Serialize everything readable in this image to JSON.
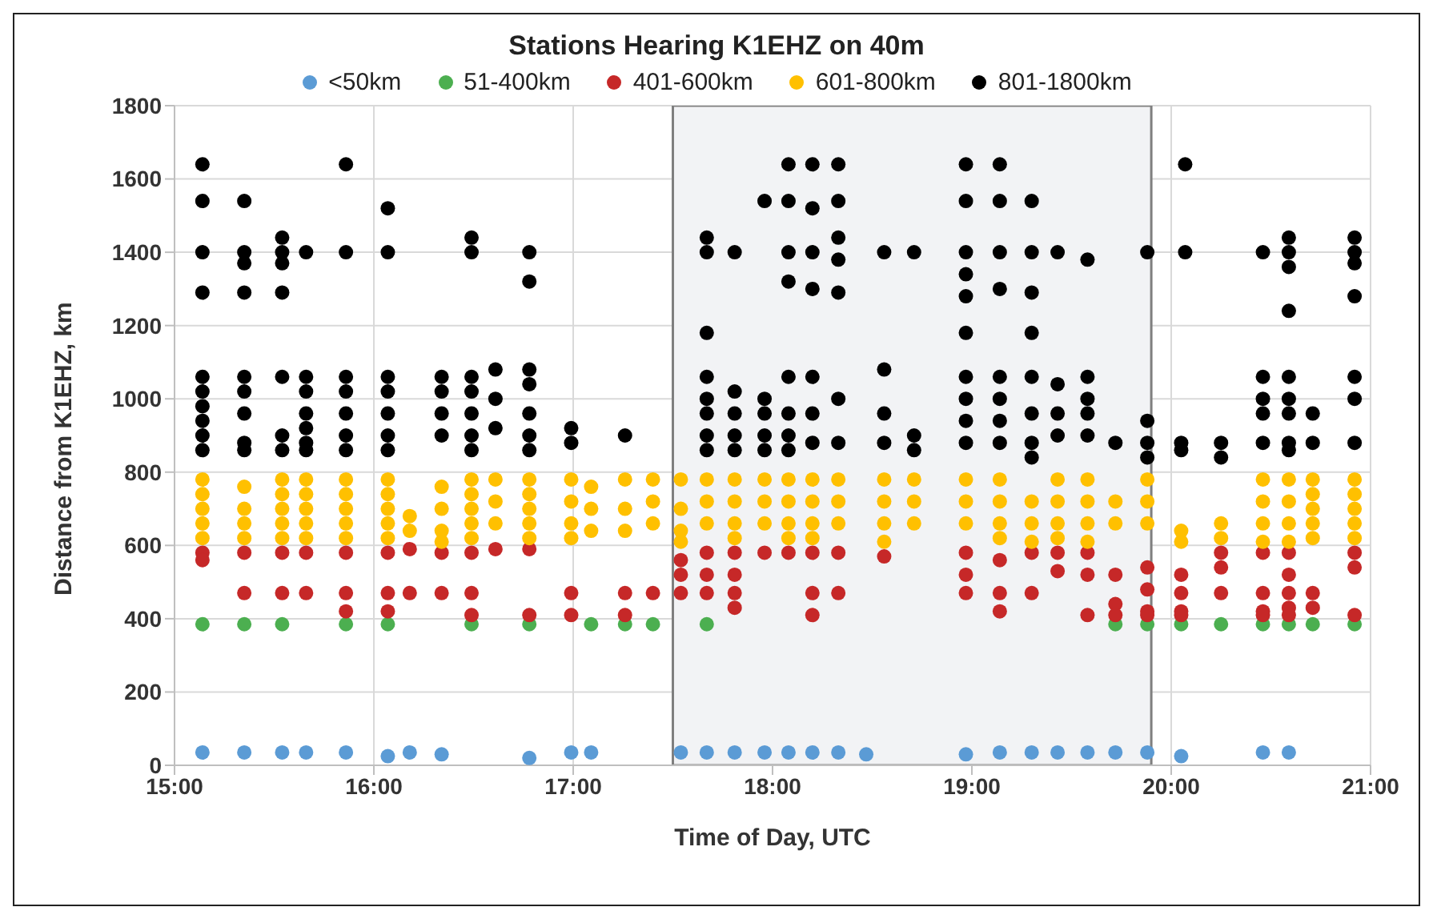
{
  "chart_data": {
    "type": "scatter",
    "title": "Stations Hearing K1EHZ on 40m",
    "xlabel": "Time of Day, UTC",
    "ylabel": "Distance from K1EHZ, km",
    "xlim": [
      15,
      21
    ],
    "ylim": [
      0,
      1800
    ],
    "xticks": [
      {
        "value": 15,
        "label": "15:00"
      },
      {
        "value": 16,
        "label": "16:00"
      },
      {
        "value": 17,
        "label": "17:00"
      },
      {
        "value": 18,
        "label": "18:00"
      },
      {
        "value": 19,
        "label": "19:00"
      },
      {
        "value": 20,
        "label": "20:00"
      },
      {
        "value": 21,
        "label": "21:00"
      }
    ],
    "yticks": [
      0,
      200,
      400,
      600,
      800,
      1000,
      1200,
      1400,
      1600,
      1800
    ],
    "grid": true,
    "legend": "top",
    "marker": "circle",
    "bands": [
      {
        "axis": "x",
        "from": 17.5,
        "to": 19.9,
        "color": "#f2f3f5"
      }
    ],
    "series": [
      {
        "name": "<50km",
        "color": "#5b9bd5",
        "x": [
          15.14,
          15.35,
          15.54,
          15.66,
          15.86,
          16.07,
          16.18,
          16.34,
          16.78,
          16.99,
          17.09,
          17.54,
          17.67,
          17.81,
          17.96,
          18.08,
          18.2,
          18.33,
          18.47,
          18.97,
          19.14,
          19.3,
          19.43,
          19.58,
          19.72,
          19.88,
          20.05,
          20.46,
          20.59
        ],
        "values": [
          35,
          35,
          35,
          35,
          35,
          25,
          35,
          30,
          20,
          35,
          35,
          35,
          35,
          35,
          35,
          35,
          35,
          35,
          30,
          30,
          35,
          35,
          35,
          35,
          35,
          35,
          25,
          35,
          35
        ]
      },
      {
        "name": "51-400km",
        "color": "#4caf50",
        "x": [
          15.14,
          15.35,
          15.54,
          15.86,
          16.07,
          16.49,
          16.78,
          17.09,
          17.26,
          17.4,
          17.67,
          19.72,
          19.88,
          20.05,
          20.25,
          20.46,
          20.59,
          20.71,
          20.92
        ],
        "values": [
          385,
          385,
          385,
          385,
          385,
          385,
          385,
          385,
          385,
          385,
          385,
          385,
          385,
          385,
          385,
          385,
          385,
          385,
          385
        ]
      },
      {
        "name": "401-600km",
        "color": "#c62828",
        "x": [
          15.14,
          15.14,
          15.35,
          15.35,
          15.54,
          15.54,
          15.66,
          15.66,
          15.86,
          15.86,
          15.86,
          16.07,
          16.07,
          16.07,
          16.18,
          16.18,
          16.34,
          16.34,
          16.49,
          16.49,
          16.49,
          16.61,
          16.78,
          16.78,
          16.99,
          16.99,
          17.26,
          17.26,
          17.4,
          17.54,
          17.54,
          17.54,
          17.67,
          17.67,
          17.67,
          17.81,
          17.81,
          17.81,
          17.81,
          17.96,
          18.08,
          18.2,
          18.2,
          18.2,
          18.33,
          18.33,
          18.56,
          18.97,
          18.97,
          18.97,
          19.14,
          19.14,
          19.14,
          19.3,
          19.3,
          19.43,
          19.43,
          19.58,
          19.58,
          19.58,
          19.72,
          19.72,
          19.72,
          19.88,
          19.88,
          19.88,
          19.88,
          20.05,
          20.05,
          20.05,
          20.05,
          20.25,
          20.25,
          20.25,
          20.46,
          20.46,
          20.46,
          20.46,
          20.59,
          20.59,
          20.59,
          20.59,
          20.59,
          20.71,
          20.71,
          20.92,
          20.92,
          20.92
        ],
        "values": [
          580,
          560,
          580,
          470,
          580,
          470,
          580,
          470,
          580,
          470,
          420,
          580,
          470,
          420,
          590,
          470,
          580,
          470,
          580,
          470,
          410,
          590,
          590,
          410,
          470,
          410,
          470,
          410,
          470,
          560,
          520,
          470,
          580,
          520,
          470,
          580,
          520,
          470,
          430,
          580,
          580,
          580,
          470,
          410,
          580,
          470,
          570,
          580,
          520,
          470,
          560,
          470,
          420,
          580,
          470,
          580,
          530,
          580,
          520,
          410,
          520,
          440,
          410,
          540,
          480,
          420,
          410,
          520,
          470,
          420,
          410,
          580,
          540,
          470,
          580,
          470,
          420,
          410,
          580,
          520,
          470,
          430,
          410,
          470,
          430,
          580,
          540,
          410
        ]
      },
      {
        "name": "601-800km",
        "color": "#ffc000",
        "x": [
          15.14,
          15.14,
          15.14,
          15.14,
          15.14,
          15.35,
          15.35,
          15.35,
          15.35,
          15.54,
          15.54,
          15.54,
          15.54,
          15.54,
          15.66,
          15.66,
          15.66,
          15.66,
          15.66,
          15.86,
          15.86,
          15.86,
          15.86,
          15.86,
          16.07,
          16.07,
          16.07,
          16.07,
          16.07,
          16.18,
          16.18,
          16.34,
          16.34,
          16.34,
          16.34,
          16.49,
          16.49,
          16.49,
          16.49,
          16.49,
          16.61,
          16.61,
          16.61,
          16.78,
          16.78,
          16.78,
          16.78,
          16.78,
          16.99,
          16.99,
          16.99,
          16.99,
          17.09,
          17.09,
          17.09,
          17.26,
          17.26,
          17.26,
          17.4,
          17.4,
          17.4,
          17.54,
          17.54,
          17.54,
          17.54,
          17.67,
          17.67,
          17.67,
          17.81,
          17.81,
          17.81,
          17.81,
          17.96,
          17.96,
          17.96,
          18.08,
          18.08,
          18.08,
          18.08,
          18.2,
          18.2,
          18.2,
          18.2,
          18.33,
          18.33,
          18.33,
          18.56,
          18.56,
          18.56,
          18.56,
          18.71,
          18.71,
          18.71,
          18.97,
          18.97,
          18.97,
          19.14,
          19.14,
          19.14,
          19.14,
          19.3,
          19.3,
          19.3,
          19.43,
          19.43,
          19.43,
          19.43,
          19.58,
          19.58,
          19.58,
          19.58,
          19.72,
          19.72,
          19.88,
          19.88,
          19.88,
          20.05,
          20.05,
          20.25,
          20.25,
          20.46,
          20.46,
          20.46,
          20.46,
          20.59,
          20.59,
          20.59,
          20.59,
          20.71,
          20.71,
          20.71,
          20.71,
          20.71,
          20.92,
          20.92,
          20.92,
          20.92,
          20.92
        ],
        "values": [
          780,
          740,
          700,
          660,
          620,
          760,
          700,
          660,
          620,
          780,
          740,
          700,
          660,
          620,
          780,
          740,
          700,
          660,
          620,
          780,
          740,
          700,
          660,
          620,
          780,
          740,
          700,
          660,
          620,
          680,
          640,
          760,
          700,
          640,
          610,
          780,
          740,
          700,
          660,
          620,
          780,
          720,
          660,
          780,
          740,
          700,
          660,
          620,
          780,
          720,
          660,
          620,
          760,
          700,
          640,
          780,
          700,
          640,
          780,
          720,
          660,
          780,
          700,
          640,
          610,
          780,
          720,
          660,
          780,
          720,
          660,
          620,
          780,
          720,
          660,
          780,
          720,
          660,
          620,
          780,
          720,
          660,
          620,
          780,
          720,
          660,
          780,
          720,
          660,
          610,
          780,
          720,
          660,
          780,
          720,
          660,
          780,
          720,
          660,
          620,
          720,
          660,
          610,
          780,
          720,
          660,
          620,
          780,
          720,
          660,
          610,
          720,
          660,
          780,
          720,
          660,
          640,
          610,
          660,
          620,
          780,
          720,
          660,
          610,
          780,
          720,
          660,
          610,
          780,
          740,
          700,
          660,
          620,
          780,
          740,
          700,
          660,
          620
        ]
      },
      {
        "name": "801-1800km",
        "color": "#000000",
        "x": [
          15.14,
          15.14,
          15.14,
          15.14,
          15.14,
          15.14,
          15.14,
          15.14,
          15.14,
          15.14,
          15.35,
          15.35,
          15.35,
          15.35,
          15.35,
          15.35,
          15.35,
          15.35,
          15.35,
          15.54,
          15.54,
          15.54,
          15.54,
          15.54,
          15.54,
          15.54,
          15.66,
          15.66,
          15.66,
          15.66,
          15.66,
          15.66,
          15.66,
          15.86,
          15.86,
          15.86,
          15.86,
          15.86,
          15.86,
          15.86,
          16.07,
          16.07,
          16.07,
          16.07,
          16.07,
          16.07,
          16.07,
          16.34,
          16.34,
          16.34,
          16.34,
          16.49,
          16.49,
          16.49,
          16.49,
          16.49,
          16.49,
          16.49,
          16.61,
          16.61,
          16.61,
          16.78,
          16.78,
          16.78,
          16.78,
          16.78,
          16.78,
          16.78,
          16.99,
          16.99,
          17.26,
          17.67,
          17.67,
          17.67,
          17.67,
          17.67,
          17.67,
          17.67,
          17.67,
          17.81,
          17.81,
          17.81,
          17.81,
          17.81,
          17.96,
          17.96,
          17.96,
          17.96,
          17.96,
          18.08,
          18.08,
          18.08,
          18.08,
          18.08,
          18.08,
          18.08,
          18.08,
          18.2,
          18.2,
          18.2,
          18.2,
          18.2,
          18.2,
          18.2,
          18.33,
          18.33,
          18.33,
          18.33,
          18.33,
          18.33,
          18.33,
          18.56,
          18.56,
          18.56,
          18.56,
          18.71,
          18.71,
          18.71,
          18.97,
          18.97,
          18.97,
          18.97,
          18.97,
          18.97,
          18.97,
          18.97,
          18.97,
          18.97,
          19.14,
          19.14,
          19.14,
          19.14,
          19.14,
          19.14,
          19.14,
          19.14,
          19.3,
          19.3,
          19.3,
          19.3,
          19.3,
          19.3,
          19.3,
          19.3,
          19.43,
          19.43,
          19.43,
          19.43,
          19.58,
          19.58,
          19.58,
          19.58,
          19.58,
          19.72,
          19.88,
          19.88,
          19.88,
          19.88,
          20.07,
          20.07,
          20.05,
          20.05,
          20.25,
          20.25,
          20.46,
          20.46,
          20.46,
          20.46,
          20.46,
          20.59,
          20.59,
          20.59,
          20.59,
          20.59,
          20.59,
          20.59,
          20.59,
          20.59,
          20.71,
          20.71,
          20.92,
          20.92,
          20.92,
          20.92,
          20.92,
          20.92,
          20.92
        ],
        "values": [
          1640,
          1540,
          1400,
          1290,
          1060,
          1020,
          980,
          940,
          900,
          860,
          1540,
          1400,
          1370,
          1290,
          1060,
          1020,
          960,
          880,
          860,
          1440,
          1400,
          1370,
          1290,
          1060,
          900,
          860,
          1400,
          1060,
          1020,
          960,
          920,
          880,
          860,
          1640,
          1400,
          1060,
          1020,
          960,
          900,
          860,
          1520,
          1400,
          1060,
          1020,
          960,
          900,
          860,
          1060,
          1020,
          960,
          900,
          1440,
          1400,
          1060,
          1020,
          960,
          900,
          860,
          1080,
          1000,
          920,
          1400,
          1320,
          1080,
          1040,
          960,
          900,
          860,
          920,
          880,
          900,
          1440,
          1400,
          1180,
          1060,
          1000,
          960,
          900,
          860,
          1400,
          1020,
          960,
          900,
          860,
          1540,
          1000,
          960,
          900,
          860,
          1640,
          1540,
          1400,
          1320,
          1060,
          960,
          900,
          860,
          1640,
          1520,
          1400,
          1300,
          1060,
          960,
          880,
          1640,
          1540,
          1440,
          1380,
          1290,
          1000,
          880,
          1400,
          1080,
          960,
          880,
          1400,
          900,
          860,
          1640,
          1540,
          1400,
          1340,
          1280,
          1180,
          1060,
          1000,
          940,
          880,
          1640,
          1540,
          1400,
          1300,
          1060,
          1000,
          940,
          880,
          1540,
          1400,
          1290,
          1180,
          1060,
          960,
          880,
          840,
          1400,
          1040,
          960,
          900,
          1380,
          1060,
          1000,
          960,
          900,
          880,
          1400,
          940,
          880,
          840,
          1640,
          1400,
          880,
          860,
          880,
          840,
          1400,
          1060,
          1000,
          960,
          880,
          1440,
          1400,
          1360,
          1240,
          1060,
          1000,
          960,
          880,
          860,
          960,
          880,
          1440,
          1400,
          1370,
          1280,
          1060,
          1000,
          880
        ]
      }
    ]
  }
}
